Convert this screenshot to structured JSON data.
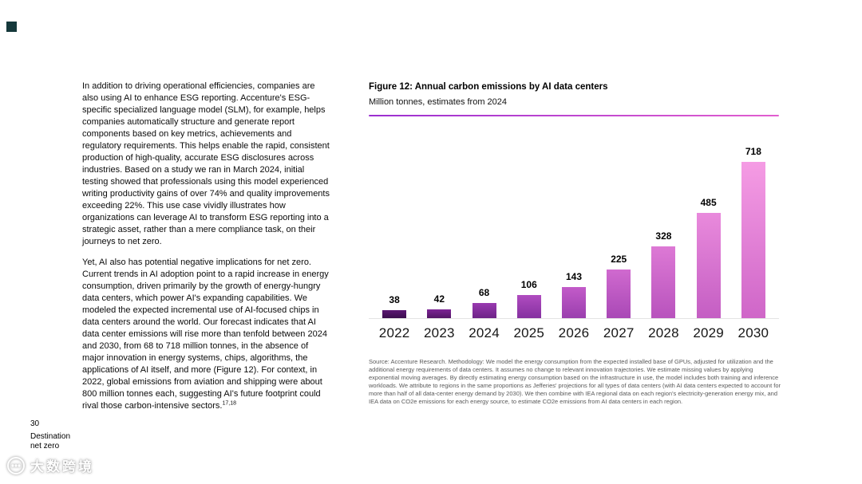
{
  "page": {
    "page_number": "30",
    "footer_title_line1": "Destination",
    "footer_title_line2": "net zero"
  },
  "left_column": {
    "paragraph1": "In addition to driving operational efficiencies, companies are also using AI to enhance ESG reporting. Accenture's ESG-specific specialized language model (SLM), for example, helps companies automatically structure and generate report components based on key metrics, achievements and regulatory requirements. This helps enable the rapid, consistent production of high-quality, accurate ESG disclosures across industries. Based on a study we ran in March 2024, initial testing showed that professionals using this model experienced writing productivity gains of over 74% and quality improvements exceeding 22%. This use case vividly illustrates how organizations can leverage AI to transform ESG reporting into a strategic asset, rather than a mere compliance task, on their journeys to net zero.",
    "paragraph2": "Yet, AI also has potential negative implications for net zero. Current trends in AI adoption point to a rapid increase in energy consumption, driven primarily by the growth of energy-hungry data centers, which power AI's expanding capabilities. We modeled the expected incremental use of AI-focused chips in data centers around the world. Our forecast indicates that AI data center emissions will rise more than tenfold between 2024 and 2030, from 68 to 718 million tonnes, in the absence of major innovation in energy systems, chips, algorithms, the applications of AI itself, and more (Figure 12). For context, in 2022, global emissions from aviation and shipping were about 800 million tonnes each, suggesting AI's future footprint could rival those carbon-intensive sectors.",
    "footnote_refs": "17,18"
  },
  "figure": {
    "title": "Figure 12: Annual carbon emissions by AI data centers",
    "subtitle": "Million tonnes, estimates from 2024",
    "source": "Source: Accenture Research. Methodology: We model the energy consumption from the expected installed base of GPUs, adjusted for utilization and the additional energy requirements of data centers. It assumes no change to relevant innovation trajectories. We estimate missing values by applying exponential moving averages. By directly estimating energy consumption based on the infrastructure in use, the model includes both training and inference workloads. We attribute to regions in the same proportions as Jefferies' projections for all types of data centers (with AI data centers expected to account for more than half of all data-center energy demand by 2030). We then combine with IEA regional data on each region's electricity-generation energy mix, and IEA data on CO2e emissions for each energy source, to estimate CO2e emissions from AI data centers in each region."
  },
  "chart_data": {
    "type": "bar",
    "title": "Figure 12: Annual carbon emissions by AI data centers",
    "subtitle": "Million tonnes, estimates from 2024",
    "categories": [
      "2022",
      "2023",
      "2024",
      "2025",
      "2026",
      "2027",
      "2028",
      "2029",
      "2030"
    ],
    "values": [
      38,
      42,
      68,
      106,
      143,
      225,
      328,
      485,
      718
    ],
    "xlabel": "",
    "ylabel": "Million tonnes",
    "ylim": [
      0,
      750
    ],
    "grid": false,
    "legend": "none",
    "value_labels": true,
    "bar_colors": [
      {
        "top": "#5b1773",
        "bottom": "#3a0d4d"
      },
      {
        "top": "#7d2596",
        "bottom": "#531566"
      },
      {
        "top": "#993ab0",
        "bottom": "#6d2387"
      },
      {
        "top": "#b04cc0",
        "bottom": "#8531a0"
      },
      {
        "top": "#c35bc9",
        "bottom": "#9a3fae"
      },
      {
        "top": "#d06acf",
        "bottom": "#a948b6"
      },
      {
        "top": "#dd79d5",
        "bottom": "#b853bd"
      },
      {
        "top": "#e98adc",
        "bottom": "#c45ec3"
      },
      {
        "top": "#f59ce4",
        "bottom": "#cf66c8"
      }
    ]
  },
  "colors": {
    "accent_rule_left": "#9b2fd0",
    "accent_rule_right": "#e25ecf",
    "corner_square": "#15393b",
    "baseline": "#e3e3e3"
  },
  "watermark": {
    "text": "大数跨境"
  }
}
